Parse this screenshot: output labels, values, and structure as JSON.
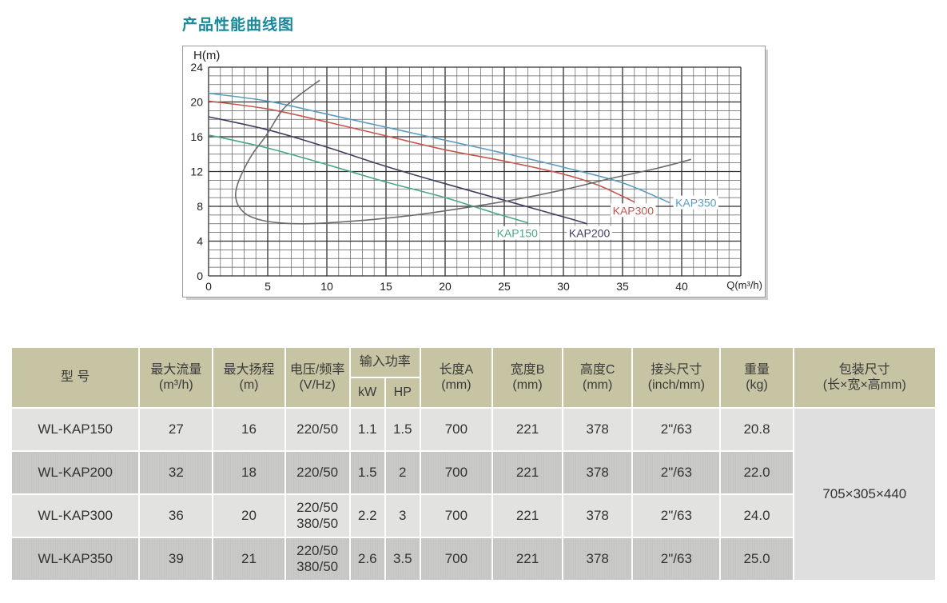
{
  "page": {
    "title": "产品性能曲线图"
  },
  "chart": {
    "y_axis_label": "H(m)",
    "x_axis_label": "Q(m³/h)"
  },
  "chart_data": {
    "type": "line",
    "title": "产品性能曲线图",
    "xlabel": "Q(m³/h)",
    "ylabel": "H(m)",
    "xlim": [
      0,
      45
    ],
    "ylim": [
      0,
      24
    ],
    "x_ticks": [
      0,
      5,
      10,
      15,
      20,
      25,
      30,
      35,
      40
    ],
    "y_ticks": [
      0,
      4,
      8,
      12,
      16,
      20,
      24
    ],
    "grid": {
      "x_minor": 1,
      "x_major": 5,
      "y_minor": 1,
      "y_major": 4
    },
    "legend_position": "labels-on-curves",
    "series": [
      {
        "name": "KAP150",
        "color": "#4ca687",
        "points": [
          [
            0,
            16.2
          ],
          [
            5,
            14.7
          ],
          [
            10,
            12.8
          ],
          [
            15,
            10.8
          ],
          [
            20,
            9.0
          ],
          [
            24,
            7.3
          ],
          [
            27,
            6.1
          ]
        ],
        "label_pos": [
          26.1,
          4.9
        ]
      },
      {
        "name": "KAP200",
        "color": "#3f3f63",
        "points": [
          [
            0,
            18.3
          ],
          [
            5,
            16.8
          ],
          [
            10,
            14.8
          ],
          [
            15,
            12.6
          ],
          [
            20,
            10.6
          ],
          [
            25,
            8.7
          ],
          [
            30,
            6.8
          ],
          [
            32,
            6.0
          ]
        ],
        "label_pos": [
          32.2,
          4.9
        ]
      },
      {
        "name": "KAP300",
        "color": "#c4574f",
        "points": [
          [
            0,
            20.1
          ],
          [
            5,
            19.2
          ],
          [
            10,
            17.7
          ],
          [
            15,
            16.1
          ],
          [
            20,
            14.5
          ],
          [
            25,
            13.2
          ],
          [
            30,
            11.7
          ],
          [
            33,
            10.4
          ],
          [
            36,
            8.5
          ]
        ],
        "label_pos": [
          35.9,
          7.5
        ]
      },
      {
        "name": "KAP350",
        "color": "#5b9dc0",
        "points": [
          [
            0,
            21.0
          ],
          [
            5,
            20.1
          ],
          [
            10,
            18.6
          ],
          [
            15,
            17.1
          ],
          [
            20,
            15.6
          ],
          [
            25,
            14.1
          ],
          [
            30,
            12.5
          ],
          [
            35,
            10.7
          ],
          [
            39,
            8.4
          ]
        ],
        "label_pos": [
          41.2,
          8.4
        ]
      },
      {
        "name": "unlabeled-gray-curve",
        "color": "#6b6b6b",
        "points": [
          [
            9.4,
            22.5
          ],
          [
            7.5,
            20.6
          ],
          [
            6.2,
            19.0
          ],
          [
            4.9,
            16.2
          ],
          [
            3.7,
            14.0
          ],
          [
            2.9,
            12.0
          ],
          [
            2.4,
            10.3
          ],
          [
            2.3,
            9.0
          ],
          [
            2.6,
            7.9
          ],
          [
            3.3,
            7.0
          ],
          [
            4.5,
            6.4
          ],
          [
            6.0,
            6.1
          ],
          [
            8.0,
            6.0
          ],
          [
            10,
            6.1
          ],
          [
            14,
            6.5
          ],
          [
            18,
            7.1
          ],
          [
            22,
            7.9
          ],
          [
            26,
            8.8
          ],
          [
            30,
            9.9
          ],
          [
            34,
            11.2
          ],
          [
            38,
            12.4
          ],
          [
            40.8,
            13.4
          ]
        ],
        "label_pos": null
      }
    ]
  },
  "table": {
    "headers": {
      "model": "型 号",
      "max_flow": {
        "t": "最大流量",
        "u": "(m³/h)"
      },
      "max_head": {
        "t": "最大扬程",
        "u": "(m)"
      },
      "voltage": {
        "t": "电压/频率",
        "u": "(V/Hz)"
      },
      "power": "输入功率",
      "kw": "kW",
      "hp": "HP",
      "length": {
        "t": "长度A",
        "u": "(mm)"
      },
      "width": {
        "t": "宽度B",
        "u": "(mm)"
      },
      "height": {
        "t": "高度C",
        "u": "(mm)"
      },
      "connector": {
        "t": "接头尺寸",
        "u": "(inch/mm)"
      },
      "weight": {
        "t": "重量",
        "u": "(kg)"
      },
      "package": {
        "t": "包装尺寸",
        "u": "(长×宽×高mm)"
      }
    },
    "rows": [
      {
        "model": "WL-KAP150",
        "flow": "27",
        "head": "16",
        "voltage": "220/50",
        "kw": "1.1",
        "hp": "1.5",
        "length": "700",
        "width": "221",
        "height": "378",
        "connector": "2\"/63",
        "weight": "20.8"
      },
      {
        "model": "WL-KAP200",
        "flow": "32",
        "head": "18",
        "voltage": "220/50",
        "kw": "1.5",
        "hp": "2",
        "length": "700",
        "width": "221",
        "height": "378",
        "connector": "2\"/63",
        "weight": "22.0"
      },
      {
        "model": "WL-KAP300",
        "flow": "36",
        "head": "20",
        "voltage": "220/50\n380/50",
        "kw": "2.2",
        "hp": "3",
        "length": "700",
        "width": "221",
        "height": "378",
        "connector": "2\"/63",
        "weight": "24.0"
      },
      {
        "model": "WL-KAP350",
        "flow": "39",
        "head": "21",
        "voltage": "220/50\n380/50",
        "kw": "2.6",
        "hp": "3.5",
        "length": "700",
        "width": "221",
        "height": "378",
        "connector": "2\"/63",
        "weight": "25.0"
      }
    ],
    "package_size": "705×305×440"
  }
}
